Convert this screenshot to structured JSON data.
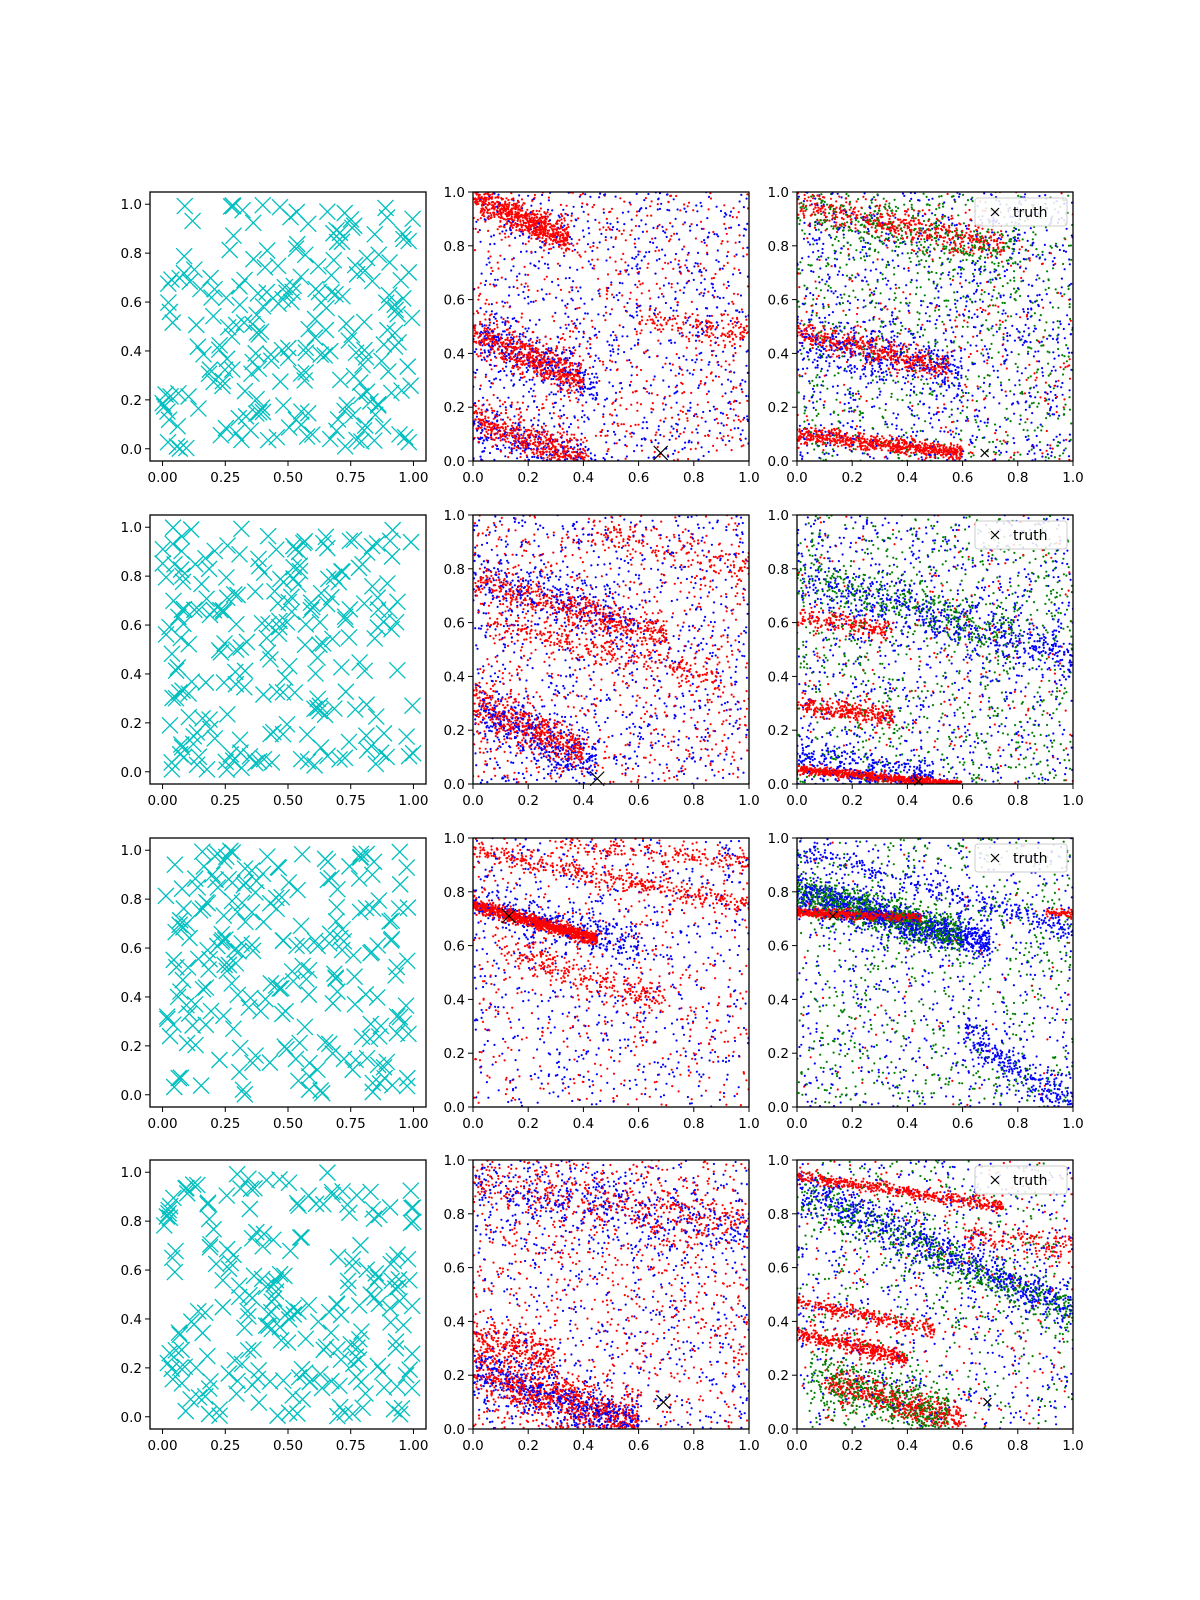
{
  "figure": {
    "rows": 4,
    "cols": 3,
    "colors": {
      "samples": "#00bfbf",
      "red": "#ff0000",
      "blue": "#0000ff",
      "green": "#008000",
      "truth": "#000000",
      "axes": "#000000",
      "background": "#ffffff"
    }
  },
  "chart_data": [
    {
      "type": "scatter",
      "row": 0,
      "col": 0,
      "marker": "x",
      "color": "#00bfbf",
      "xlim": [
        -0.05,
        1.05
      ],
      "ylim": [
        -0.05,
        1.05
      ],
      "xticks": [
        "0.00",
        "0.25",
        "0.50",
        "0.75",
        "1.00"
      ],
      "yticks": [
        "0.0",
        "0.2",
        "0.4",
        "0.6",
        "0.8",
        "1.0"
      ],
      "n_points": 220,
      "seed": 11
    },
    {
      "type": "scatter",
      "row": 0,
      "col": 1,
      "marker": "dot",
      "series_colors": [
        "#0000ff",
        "#ff0000"
      ],
      "xlim": [
        0,
        1
      ],
      "ylim": [
        0,
        1
      ],
      "xticks": [
        "0.0",
        "0.2",
        "0.4",
        "0.6",
        "0.8",
        "1.0"
      ],
      "yticks": [
        "0.0",
        "0.2",
        "0.4",
        "0.6",
        "0.8",
        "1.0"
      ],
      "truth": [
        0.68,
        0.03
      ],
      "truth_size": "large",
      "bands": [
        {
          "x0": 0.0,
          "y0": 0.98,
          "slope": -0.45,
          "n": 700,
          "spread": 0.03,
          "xmax": 0.35,
          "color": "#ff0000"
        },
        {
          "x0": 0.0,
          "y0": 0.48,
          "slope": -0.45,
          "n": 600,
          "spread": 0.035,
          "xmax": 0.4,
          "color": "#ff0000"
        },
        {
          "x0": 0.0,
          "y0": 0.16,
          "slope": -0.4,
          "n": 500,
          "spread": 0.035,
          "xmax": 0.42,
          "color": "#ff0000"
        },
        {
          "x0": 0.0,
          "y0": 0.48,
          "slope": -0.45,
          "n": 250,
          "spread": 0.05,
          "xmax": 0.45,
          "color": "#0000ff"
        },
        {
          "x0": 0.0,
          "y0": 0.14,
          "slope": -0.4,
          "n": 250,
          "spread": 0.05,
          "xmax": 0.45,
          "color": "#0000ff"
        },
        {
          "x0": 0.6,
          "y0": 0.52,
          "slope": -0.1,
          "n": 150,
          "spread": 0.03,
          "xmax": 1.0,
          "color": "#ff0000"
        }
      ],
      "background_points": {
        "red": 700,
        "blue": 900
      }
    },
    {
      "type": "scatter",
      "row": 0,
      "col": 2,
      "marker": "dot",
      "series_colors": [
        "#0000ff",
        "#008000",
        "#ff0000"
      ],
      "xlim": [
        0,
        1
      ],
      "ylim": [
        0,
        1
      ],
      "xticks": [
        "0.0",
        "0.2",
        "0.4",
        "0.6",
        "0.8",
        "1.0"
      ],
      "yticks": [
        "0.0",
        "0.2",
        "0.4",
        "0.6",
        "0.8",
        "1.0"
      ],
      "truth": [
        0.68,
        0.03
      ],
      "truth_size": "small",
      "legend": {
        "label": "truth",
        "loc": "upper right"
      },
      "bands": [
        {
          "x0": 0.0,
          "y0": 0.1,
          "slope": -0.12,
          "n": 700,
          "spread": 0.015,
          "xmax": 0.6,
          "color": "#ff0000"
        },
        {
          "x0": 0.0,
          "y0": 0.48,
          "slope": -0.25,
          "n": 500,
          "spread": 0.025,
          "xmax": 0.55,
          "color": "#ff0000"
        },
        {
          "x0": 0.0,
          "y0": 0.95,
          "slope": -0.2,
          "n": 500,
          "spread": 0.03,
          "xmax": 0.75,
          "color": "#ff0000"
        },
        {
          "x0": 0.0,
          "y0": 0.45,
          "slope": -0.2,
          "n": 300,
          "spread": 0.05,
          "xmax": 0.6,
          "color": "#0000ff"
        },
        {
          "x0": 0.0,
          "y0": 0.95,
          "slope": -0.25,
          "n": 300,
          "spread": 0.05,
          "xmax": 0.8,
          "color": "#008000"
        }
      ],
      "background_points": {
        "red": 300,
        "blue": 1100,
        "green": 800
      }
    },
    {
      "type": "scatter",
      "row": 1,
      "col": 0,
      "marker": "x",
      "color": "#00bfbf",
      "xlim": [
        -0.05,
        1.05
      ],
      "ylim": [
        -0.05,
        1.05
      ],
      "xticks": [
        "0.00",
        "0.25",
        "0.50",
        "0.75",
        "1.00"
      ],
      "yticks": [
        "0.0",
        "0.2",
        "0.4",
        "0.6",
        "0.8",
        "1.0"
      ],
      "n_points": 220,
      "seed": 23
    },
    {
      "type": "scatter",
      "row": 1,
      "col": 1,
      "marker": "dot",
      "series_colors": [
        "#0000ff",
        "#ff0000"
      ],
      "xlim": [
        0,
        1
      ],
      "ylim": [
        0,
        1
      ],
      "xticks": [
        "0.0",
        "0.2",
        "0.4",
        "0.6",
        "0.8",
        "1.0"
      ],
      "yticks": [
        "0.0",
        "0.2",
        "0.4",
        "0.6",
        "0.8",
        "1.0"
      ],
      "truth": [
        0.45,
        0.02
      ],
      "truth_size": "large",
      "bands": [
        {
          "x0": 0.0,
          "y0": 0.76,
          "slope": -0.3,
          "n": 500,
          "spread": 0.03,
          "xmax": 0.7,
          "color": "#ff0000"
        },
        {
          "x0": 0.0,
          "y0": 0.3,
          "slope": -0.45,
          "n": 500,
          "spread": 0.04,
          "xmax": 0.4,
          "color": "#ff0000"
        },
        {
          "x0": 0.05,
          "y0": 0.6,
          "slope": -0.25,
          "n": 300,
          "spread": 0.03,
          "xmax": 0.9,
          "color": "#ff0000"
        },
        {
          "x0": 0.0,
          "y0": 0.28,
          "slope": -0.45,
          "n": 350,
          "spread": 0.05,
          "xmax": 0.45,
          "color": "#0000ff"
        },
        {
          "x0": 0.0,
          "y0": 0.78,
          "slope": -0.3,
          "n": 250,
          "spread": 0.05,
          "xmax": 0.6,
          "color": "#0000ff"
        },
        {
          "x0": 0.4,
          "y0": 0.95,
          "slope": -0.25,
          "n": 150,
          "spread": 0.03,
          "xmax": 1.0,
          "color": "#ff0000"
        }
      ],
      "background_points": {
        "red": 800,
        "blue": 900
      }
    },
    {
      "type": "scatter",
      "row": 1,
      "col": 2,
      "marker": "dot",
      "series_colors": [
        "#0000ff",
        "#008000",
        "#ff0000"
      ],
      "xlim": [
        0,
        1
      ],
      "ylim": [
        0,
        1
      ],
      "xticks": [
        "0.0",
        "0.2",
        "0.4",
        "0.6",
        "0.8",
        "1.0"
      ],
      "yticks": [
        "0.0",
        "0.2",
        "0.4",
        "0.6",
        "0.8",
        "1.0"
      ],
      "truth": [
        0.44,
        0.01
      ],
      "truth_size": "small",
      "legend": {
        "label": "truth",
        "loc": "upper right"
      },
      "bands": [
        {
          "x0": 0.0,
          "y0": 0.055,
          "slope": -0.1,
          "n": 900,
          "spread": 0.008,
          "xmax": 0.6,
          "color": "#ff0000"
        },
        {
          "x0": 0.0,
          "y0": 0.3,
          "slope": -0.15,
          "n": 300,
          "spread": 0.02,
          "xmax": 0.35,
          "color": "#ff0000"
        },
        {
          "x0": 0.0,
          "y0": 0.62,
          "slope": -0.15,
          "n": 200,
          "spread": 0.02,
          "xmax": 0.35,
          "color": "#ff0000"
        },
        {
          "x0": 0.0,
          "y0": 0.77,
          "slope": -0.3,
          "n": 500,
          "spread": 0.05,
          "xmax": 1.0,
          "color": "#0000ff"
        },
        {
          "x0": 0.0,
          "y0": 0.78,
          "slope": -0.3,
          "n": 350,
          "spread": 0.05,
          "xmax": 0.8,
          "color": "#008000"
        },
        {
          "x0": 0.0,
          "y0": 0.1,
          "slope": -0.15,
          "n": 300,
          "spread": 0.04,
          "xmax": 0.5,
          "color": "#0000ff"
        }
      ],
      "background_points": {
        "red": 250,
        "blue": 900,
        "green": 800
      }
    },
    {
      "type": "scatter",
      "row": 2,
      "col": 0,
      "marker": "x",
      "color": "#00bfbf",
      "xlim": [
        -0.05,
        1.05
      ],
      "ylim": [
        -0.05,
        1.05
      ],
      "xticks": [
        "0.00",
        "0.25",
        "0.50",
        "0.75",
        "1.00"
      ],
      "yticks": [
        "0.0",
        "0.2",
        "0.4",
        "0.6",
        "0.8",
        "1.0"
      ],
      "n_points": 220,
      "seed": 37
    },
    {
      "type": "scatter",
      "row": 2,
      "col": 1,
      "marker": "dot",
      "series_colors": [
        "#0000ff",
        "#ff0000"
      ],
      "xlim": [
        0,
        1
      ],
      "ylim": [
        0,
        1
      ],
      "xticks": [
        "0.0",
        "0.2",
        "0.4",
        "0.6",
        "0.8",
        "1.0"
      ],
      "yticks": [
        "0.0",
        "0.2",
        "0.4",
        "0.6",
        "0.8",
        "1.0"
      ],
      "truth": [
        0.13,
        0.71
      ],
      "truth_size": "large",
      "bands": [
        {
          "x0": 0.0,
          "y0": 0.75,
          "slope": -0.28,
          "n": 1100,
          "spread": 0.012,
          "xmax": 0.45,
          "color": "#ff0000"
        },
        {
          "x0": 0.0,
          "y0": 0.95,
          "slope": -0.2,
          "n": 400,
          "spread": 0.02,
          "xmax": 1.0,
          "color": "#ff0000"
        },
        {
          "x0": 0.1,
          "y0": 0.58,
          "slope": -0.3,
          "n": 250,
          "spread": 0.03,
          "xmax": 0.7,
          "color": "#ff0000"
        },
        {
          "x0": 0.0,
          "y0": 0.76,
          "slope": -0.28,
          "n": 300,
          "spread": 0.04,
          "xmax": 0.6,
          "color": "#0000ff"
        },
        {
          "x0": 0.3,
          "y0": 0.98,
          "slope": -0.1,
          "n": 200,
          "spread": 0.02,
          "xmax": 1.0,
          "color": "#ff0000"
        }
      ],
      "background_points": {
        "red": 550,
        "blue": 700
      }
    },
    {
      "type": "scatter",
      "row": 2,
      "col": 2,
      "marker": "dot",
      "series_colors": [
        "#0000ff",
        "#008000",
        "#ff0000"
      ],
      "xlim": [
        0,
        1
      ],
      "ylim": [
        0,
        1
      ],
      "xticks": [
        "0.0",
        "0.2",
        "0.4",
        "0.6",
        "0.8",
        "1.0"
      ],
      "yticks": [
        "0.0",
        "0.2",
        "0.4",
        "0.6",
        "0.8",
        "1.0"
      ],
      "truth": [
        0.13,
        0.71
      ],
      "truth_size": "small",
      "legend": {
        "label": "truth",
        "loc": "upper right"
      },
      "bands": [
        {
          "x0": 0.0,
          "y0": 0.725,
          "slope": -0.05,
          "n": 900,
          "spread": 0.008,
          "xmax": 0.45,
          "color": "#ff0000"
        },
        {
          "x0": 0.0,
          "y0": 0.8,
          "slope": -0.28,
          "n": 1000,
          "spread": 0.035,
          "xmax": 0.7,
          "color": "#0000ff"
        },
        {
          "x0": 0.0,
          "y0": 0.8,
          "slope": -0.28,
          "n": 800,
          "spread": 0.035,
          "xmax": 0.6,
          "color": "#008000"
        },
        {
          "x0": 0.6,
          "y0": 0.28,
          "slope": -0.7,
          "n": 300,
          "spread": 0.04,
          "xmax": 1.0,
          "color": "#0000ff"
        },
        {
          "x0": 0.0,
          "y0": 0.96,
          "slope": -0.3,
          "n": 300,
          "spread": 0.02,
          "xmax": 1.0,
          "color": "#0000ff"
        },
        {
          "x0": 0.9,
          "y0": 0.72,
          "slope": 0.0,
          "n": 60,
          "spread": 0.008,
          "xmax": 1.0,
          "color": "#ff0000"
        }
      ],
      "background_points": {
        "red": 80,
        "blue": 700,
        "green": 700
      }
    },
    {
      "type": "scatter",
      "row": 3,
      "col": 0,
      "marker": "x",
      "color": "#00bfbf",
      "xlim": [
        -0.05,
        1.05
      ],
      "ylim": [
        -0.05,
        1.05
      ],
      "xticks": [
        "0.00",
        "0.25",
        "0.50",
        "0.75",
        "1.00"
      ],
      "yticks": [
        "0.0",
        "0.2",
        "0.4",
        "0.6",
        "0.8",
        "1.0"
      ],
      "n_points": 220,
      "seed": 51
    },
    {
      "type": "scatter",
      "row": 3,
      "col": 1,
      "marker": "dot",
      "series_colors": [
        "#0000ff",
        "#ff0000"
      ],
      "xlim": [
        0,
        1
      ],
      "ylim": [
        0,
        1
      ],
      "xticks": [
        "0.0",
        "0.2",
        "0.4",
        "0.6",
        "0.8",
        "1.0"
      ],
      "yticks": [
        "0.0",
        "0.2",
        "0.4",
        "0.6",
        "0.8",
        "1.0"
      ],
      "truth": [
        0.69,
        0.1
      ],
      "truth_size": "large",
      "bands": [
        {
          "x0": 0.0,
          "y0": 0.22,
          "slope": -0.35,
          "n": 800,
          "spread": 0.05,
          "xmax": 0.6,
          "color": "#ff0000"
        },
        {
          "x0": 0.0,
          "y0": 0.22,
          "slope": -0.35,
          "n": 600,
          "spread": 0.05,
          "xmax": 0.6,
          "color": "#0000ff"
        },
        {
          "x0": 0.0,
          "y0": 0.35,
          "slope": -0.3,
          "n": 250,
          "spread": 0.04,
          "xmax": 0.3,
          "color": "#ff0000"
        },
        {
          "x0": 0.0,
          "y0": 0.92,
          "slope": -0.15,
          "n": 400,
          "spread": 0.06,
          "xmax": 1.0,
          "color": "#ff0000"
        },
        {
          "x0": 0.0,
          "y0": 0.9,
          "slope": -0.15,
          "n": 400,
          "spread": 0.06,
          "xmax": 1.0,
          "color": "#0000ff"
        }
      ],
      "background_points": {
        "red": 900,
        "blue": 700
      }
    },
    {
      "type": "scatter",
      "row": 3,
      "col": 2,
      "marker": "dot",
      "series_colors": [
        "#0000ff",
        "#008000",
        "#ff0000"
      ],
      "xlim": [
        0,
        1
      ],
      "ylim": [
        0,
        1
      ],
      "xticks": [
        "0.0",
        "0.2",
        "0.4",
        "0.6",
        "0.8",
        "1.0"
      ],
      "yticks": [
        "0.0",
        "0.2",
        "0.4",
        "0.6",
        "0.8",
        "1.0"
      ],
      "truth": [
        0.69,
        0.1
      ],
      "truth_size": "small",
      "legend": {
        "label": "truth",
        "loc": "upper right"
      },
      "bands": [
        {
          "x0": 0.0,
          "y0": 0.94,
          "slope": -0.15,
          "n": 500,
          "spread": 0.012,
          "xmax": 0.75,
          "color": "#ff0000"
        },
        {
          "x0": 0.0,
          "y0": 0.36,
          "slope": -0.25,
          "n": 400,
          "spread": 0.015,
          "xmax": 0.4,
          "color": "#ff0000"
        },
        {
          "x0": 0.0,
          "y0": 0.47,
          "slope": -0.2,
          "n": 250,
          "spread": 0.015,
          "xmax": 0.5,
          "color": "#ff0000"
        },
        {
          "x0": 0.1,
          "y0": 0.18,
          "slope": -0.3,
          "n": 500,
          "spread": 0.03,
          "xmax": 0.6,
          "color": "#ff0000"
        },
        {
          "x0": 0.0,
          "y0": 0.9,
          "slope": -0.45,
          "n": 700,
          "spread": 0.04,
          "xmax": 1.0,
          "color": "#0000ff"
        },
        {
          "x0": 0.0,
          "y0": 0.88,
          "slope": -0.45,
          "n": 500,
          "spread": 0.04,
          "xmax": 1.0,
          "color": "#008000"
        },
        {
          "x0": 0.05,
          "y0": 0.2,
          "slope": -0.3,
          "n": 500,
          "spread": 0.05,
          "xmax": 0.55,
          "color": "#008000"
        },
        {
          "x0": 0.6,
          "y0": 0.72,
          "slope": -0.1,
          "n": 150,
          "spread": 0.03,
          "xmax": 1.0,
          "color": "#ff0000"
        }
      ],
      "background_points": {
        "red": 300,
        "blue": 700,
        "green": 500
      }
    }
  ]
}
